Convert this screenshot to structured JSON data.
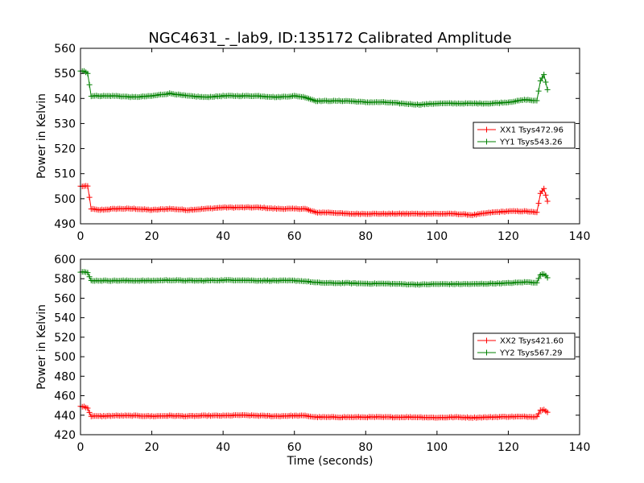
{
  "title": "NGC4631_-_lab9, ID:135172 Calibrated Amplitude",
  "chart_data": [
    {
      "type": "line",
      "xlabel": "",
      "ylabel": "Power in Kelvin",
      "xlim": [
        0,
        140
      ],
      "ylim": [
        490,
        560
      ],
      "xticks": [
        "0",
        "20",
        "40",
        "60",
        "80",
        "100",
        "120",
        "140"
      ],
      "yticks": [
        "490",
        "500",
        "510",
        "520",
        "530",
        "540",
        "550",
        "560"
      ],
      "grid": false,
      "legend_position": "center-right",
      "series": [
        {
          "name": "XX1 Tsys472.96",
          "color": "#ff0000",
          "x": [
            0,
            1,
            2,
            3,
            5,
            10,
            15,
            20,
            25,
            30,
            35,
            40,
            45,
            50,
            55,
            60,
            63,
            66,
            70,
            75,
            80,
            85,
            90,
            95,
            100,
            105,
            110,
            115,
            120,
            125,
            128,
            129,
            130,
            131
          ],
          "y": [
            505,
            505,
            505,
            496,
            495.5,
            496,
            496,
            495.5,
            496,
            495.5,
            496,
            496.5,
            496.5,
            496.5,
            496,
            496,
            496,
            494.5,
            494.5,
            494,
            494,
            494,
            494,
            494,
            494,
            494,
            493.5,
            494.5,
            495,
            495,
            494.5,
            502,
            504,
            499
          ]
        },
        {
          "name": "YY1 Tsys543.26",
          "color": "#008000",
          "x": [
            0,
            1,
            2,
            3,
            5,
            10,
            15,
            20,
            25,
            30,
            35,
            40,
            45,
            50,
            55,
            60,
            63,
            66,
            70,
            75,
            80,
            85,
            90,
            95,
            100,
            105,
            110,
            115,
            120,
            125,
            128,
            129,
            130,
            131
          ],
          "y": [
            551,
            551,
            550,
            541,
            541,
            541,
            540.5,
            541,
            542,
            541,
            540.5,
            541,
            541,
            541,
            540.5,
            541,
            540.5,
            539,
            539,
            539,
            538.5,
            538.5,
            538,
            537.5,
            538,
            538,
            538,
            538,
            538.5,
            539.5,
            539,
            547,
            549.5,
            543.5
          ]
        }
      ]
    },
    {
      "type": "line",
      "xlabel": "Time (seconds)",
      "ylabel": "Power in Kelvin",
      "xlim": [
        0,
        140
      ],
      "ylim": [
        420,
        600
      ],
      "xticks": [
        "0",
        "20",
        "40",
        "60",
        "80",
        "100",
        "120",
        "140"
      ],
      "yticks": [
        "420",
        "440",
        "460",
        "480",
        "500",
        "520",
        "540",
        "560",
        "580",
        "600"
      ],
      "grid": false,
      "legend_position": "center-right",
      "series": [
        {
          "name": "XX2 Tsys421.60",
          "color": "#ff0000",
          "x": [
            0,
            1,
            2,
            3,
            5,
            10,
            15,
            20,
            25,
            30,
            35,
            40,
            45,
            50,
            55,
            60,
            63,
            66,
            70,
            75,
            80,
            85,
            90,
            95,
            100,
            105,
            110,
            115,
            120,
            125,
            128,
            129,
            130,
            131
          ],
          "y": [
            449,
            449,
            447,
            439,
            439,
            439.5,
            439.5,
            439,
            439.5,
            439,
            439.5,
            439.5,
            440,
            439.5,
            439,
            439.5,
            439.5,
            438,
            438,
            438,
            438,
            438,
            438,
            438,
            437.5,
            438,
            437.5,
            438,
            438.5,
            438.5,
            438.5,
            445,
            446,
            443
          ]
        },
        {
          "name": "YY2 Tsys567.29",
          "color": "#008000",
          "x": [
            0,
            1,
            2,
            3,
            5,
            10,
            15,
            20,
            25,
            30,
            35,
            40,
            45,
            50,
            55,
            60,
            63,
            66,
            70,
            75,
            80,
            85,
            90,
            95,
            100,
            105,
            110,
            115,
            120,
            125,
            128,
            129,
            130,
            131
          ],
          "y": [
            587,
            587,
            586,
            578,
            578,
            578,
            578,
            578,
            578.5,
            578,
            578,
            578.5,
            578.5,
            578,
            578,
            578,
            577.5,
            576,
            575.5,
            575.5,
            575,
            575,
            574.5,
            574,
            574.5,
            574.5,
            574.5,
            575,
            575.5,
            576.5,
            576,
            584,
            585,
            581
          ]
        }
      ]
    }
  ]
}
